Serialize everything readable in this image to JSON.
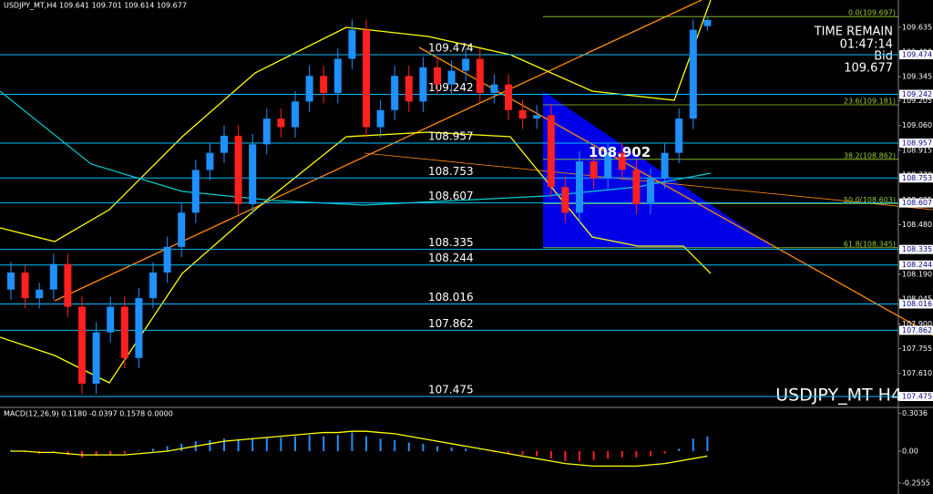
{
  "chart_data": {
    "type": "candlestick",
    "header": "USDJPY_MT,H4  109.641 109.701 109.614 109.677",
    "symbol_label": "USDJPY_MT H4",
    "info": {
      "time_remain_label": "TIME REMAIN",
      "time_remain": "01:47:14",
      "bid_label": "Bid",
      "bid": 109.677
    },
    "pattern_label": 108.902,
    "ylim": [
      107.411,
      109.794
    ],
    "yticks": [
      109.635,
      {
        "value": 109.49,
        "label": "109.490"
      },
      109.345,
      109.205,
      {
        "value": 109.06,
        "label": "109.060"
      },
      108.915,
      {
        "value": 108.77,
        "label": "108.770"
      },
      108.625,
      {
        "value": 108.48,
        "label": "108.480"
      },
      108.335,
      {
        "value": 108.19,
        "label": "108.190"
      },
      108.045,
      {
        "value": 107.9,
        "label": "107.900"
      },
      107.755,
      {
        "value": 107.61,
        "label": "107.610"
      }
    ],
    "levels": [
      109.474,
      109.242,
      108.957,
      108.753,
      108.607,
      108.335,
      108.244,
      108.016,
      107.862,
      107.475
    ],
    "fib_levels": [
      {
        "value": 109.697,
        "label": "0.0(109.697)"
      },
      {
        "value": 109.181,
        "label": "23.6(109.181)"
      },
      {
        "value": 108.862,
        "label": "38.2(108.862)"
      },
      {
        "value": 108.603,
        "label": "50.0(108.603)"
      },
      {
        "value": 108.345,
        "label": "61.8(108.345)"
      }
    ],
    "up_color": "#1e90ff",
    "down_color": "#ff2020",
    "open": [
      108.1,
      108.2,
      108.05,
      108.1,
      108.25,
      108.0,
      107.55,
      107.85,
      108.0,
      107.7,
      108.05,
      108.2,
      108.35,
      108.55,
      108.8,
      108.9,
      109.0,
      108.6,
      108.95,
      109.1,
      109.05,
      109.2,
      109.35,
      109.25,
      109.45,
      109.62,
      109.05,
      109.15,
      109.35,
      109.2,
      109.4,
      109.3,
      109.38,
      109.45,
      109.25,
      109.3,
      109.15,
      109.1,
      109.12,
      108.7,
      108.55,
      108.85,
      108.75,
      108.9,
      108.8,
      108.6,
      108.75,
      108.9,
      109.1,
      109.641
    ],
    "high": [
      108.26,
      108.24,
      108.14,
      108.31,
      108.31,
      108.06,
      107.91,
      108.06,
      108.06,
      108.11,
      108.26,
      108.41,
      108.61,
      108.86,
      108.96,
      109.06,
      109.06,
      109.01,
      109.16,
      109.16,
      109.26,
      109.41,
      109.41,
      109.51,
      109.68,
      109.68,
      109.21,
      109.41,
      109.41,
      109.46,
      109.46,
      109.44,
      109.51,
      109.51,
      109.36,
      109.36,
      109.21,
      109.18,
      109.18,
      108.76,
      108.91,
      108.91,
      108.96,
      108.96,
      108.86,
      108.81,
      108.96,
      109.16,
      109.68,
      109.701
    ],
    "low": [
      108.04,
      107.99,
      107.99,
      108.04,
      107.94,
      107.49,
      107.49,
      107.79,
      107.64,
      107.64,
      107.99,
      108.14,
      108.29,
      108.49,
      108.74,
      108.84,
      108.54,
      108.54,
      108.89,
      108.99,
      108.99,
      109.14,
      109.19,
      109.19,
      109.39,
      108.99,
      108.99,
      109.09,
      109.14,
      109.14,
      109.24,
      109.24,
      109.32,
      109.19,
      109.19,
      109.09,
      109.04,
      109.04,
      108.64,
      108.49,
      108.49,
      108.69,
      108.69,
      108.74,
      108.54,
      108.54,
      108.69,
      108.84,
      109.04,
      109.614
    ],
    "close": [
      108.2,
      108.05,
      108.1,
      108.25,
      108.0,
      107.55,
      107.85,
      108.0,
      107.7,
      108.05,
      108.2,
      108.35,
      108.55,
      108.8,
      108.9,
      109.0,
      108.6,
      108.95,
      109.1,
      109.05,
      109.2,
      109.35,
      109.25,
      109.45,
      109.62,
      109.05,
      109.15,
      109.35,
      109.2,
      109.4,
      109.3,
      109.38,
      109.45,
      109.25,
      109.3,
      109.15,
      109.1,
      109.12,
      108.7,
      108.55,
      108.85,
      108.75,
      108.9,
      108.8,
      108.6,
      108.75,
      108.9,
      109.1,
      109.62,
      109.677
    ],
    "macd": {
      "label": "MACD(12,26,9) 0.1180 -0.0397 0.1578 0.0000",
      "histogram": [
        0.01,
        -0.01,
        -0.02,
        -0.01,
        -0.03,
        -0.05,
        -0.04,
        -0.03,
        -0.02,
        0.005,
        0.02,
        0.04,
        0.06,
        0.08,
        0.09,
        0.1,
        0.09,
        0.1,
        0.11,
        0.11,
        0.12,
        0.13,
        0.12,
        0.13,
        0.15,
        0.12,
        0.1,
        0.09,
        0.07,
        0.06,
        0.04,
        0.03,
        0.02,
        0.005,
        -0.01,
        -0.02,
        -0.03,
        -0.04,
        -0.06,
        -0.08,
        -0.08,
        -0.07,
        -0.06,
        -0.05,
        -0.05,
        -0.04,
        -0.02,
        0.02,
        0.1,
        0.118
      ],
      "signal": [
        0.0,
        0.0,
        -0.01,
        -0.01,
        -0.02,
        -0.03,
        -0.03,
        -0.03,
        -0.03,
        -0.02,
        -0.01,
        0.0,
        0.02,
        0.04,
        0.06,
        0.08,
        0.09,
        0.1,
        0.11,
        0.12,
        0.13,
        0.14,
        0.15,
        0.15,
        0.16,
        0.16,
        0.15,
        0.14,
        0.12,
        0.1,
        0.08,
        0.06,
        0.04,
        0.02,
        0.0,
        -0.02,
        -0.04,
        -0.06,
        -0.08,
        -0.1,
        -0.11,
        -0.12,
        -0.12,
        -0.12,
        -0.12,
        -0.11,
        -0.1,
        -0.08,
        -0.06,
        -0.0397
      ],
      "signal_color": "#ffff00",
      "ylim": [
        -0.33,
        0.33
      ],
      "yticks": [
        0.3036,
        {
          "value": 0,
          "label": "0.00"
        },
        -0.2555
      ]
    }
  }
}
